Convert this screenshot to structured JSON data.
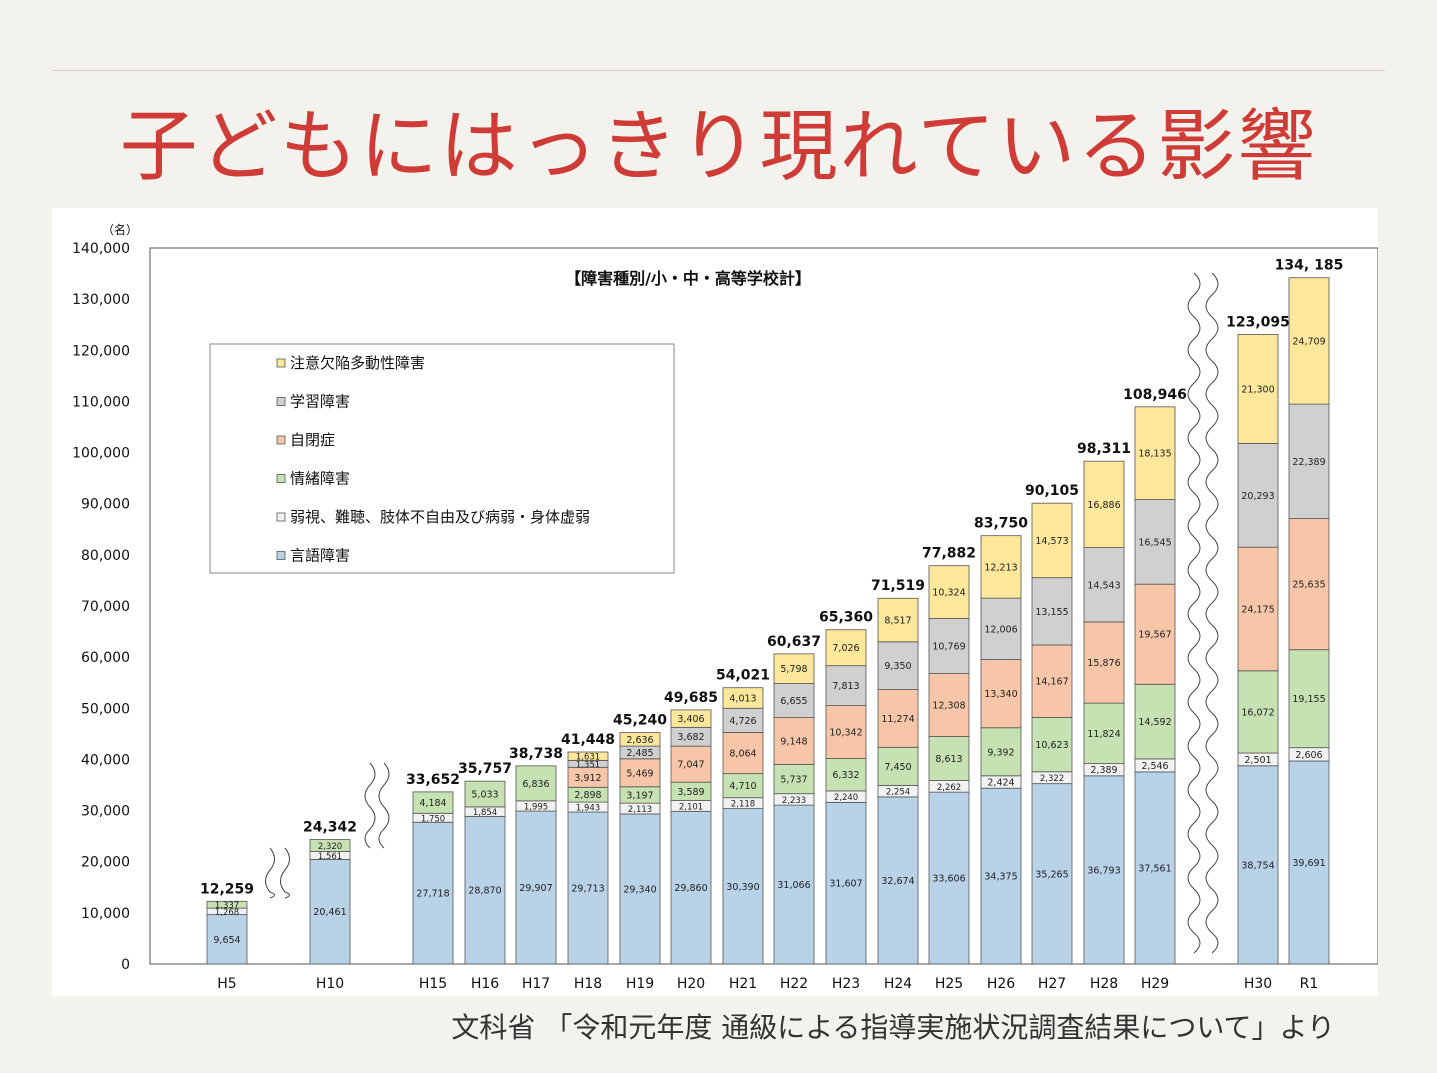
{
  "page": {
    "title": "子どもにはっきり現れている影響",
    "source": "文科省 「令和元年度 通級による指導実施状況調査結果について」より"
  },
  "chart_data": {
    "type": "bar",
    "stacked": true,
    "title": "【障害種別/小・中・高等学校計】",
    "ylabel": "（名）",
    "xlabel": "",
    "ylim": [
      0,
      140000
    ],
    "yticks": [
      "0",
      "10,000",
      "20,000",
      "30,000",
      "40,000",
      "50,000",
      "60,000",
      "70,000",
      "80,000",
      "90,000",
      "100,000",
      "110,000",
      "120,000",
      "130,000",
      "140,000"
    ],
    "grid": false,
    "legend_position": "top-left",
    "axis_breaks": [
      "H5-H10",
      "H10-H15",
      "H29-H30"
    ],
    "categories": [
      "H5",
      "H10",
      "H15",
      "H16",
      "H17",
      "H18",
      "H19",
      "H20",
      "H21",
      "H22",
      "H23",
      "H24",
      "H25",
      "H26",
      "H27",
      "H28",
      "H29",
      "H30",
      "R1"
    ],
    "totals": [
      "12,259",
      "24,342",
      "33,652",
      "35,757",
      "38,738",
      "41,448",
      "45,240",
      "49,685",
      "54,021",
      "60,637",
      "65,360",
      "71,519",
      "77,882",
      "83,750",
      "90,105",
      "98,311",
      "108,946",
      "123,095",
      "134, 185"
    ],
    "series": [
      {
        "name": "言語障害",
        "color": "#b8d2e8",
        "values": [
          9654,
          20461,
          27718,
          28870,
          29907,
          29713,
          29340,
          29860,
          30390,
          31066,
          31607,
          32674,
          33606,
          34375,
          35265,
          36793,
          37561,
          38754,
          39691
        ],
        "labels": [
          "9,654",
          "20,461",
          "27,718",
          "28,870",
          "29,907",
          "29,713",
          "29,340",
          "29,860",
          "30,390",
          "31,066",
          "31,607",
          "32,674",
          "33,606",
          "34,375",
          "35,265",
          "36,793",
          "37,561",
          "38,754",
          "39,691"
        ]
      },
      {
        "name": "弱視、難聴、肢体不自由及び病弱・身体虚弱",
        "color": "#f2f2f2",
        "values": [
          1268,
          1561,
          1750,
          1854,
          1995,
          1943,
          2113,
          2101,
          2118,
          2233,
          2240,
          2254,
          2262,
          2424,
          2322,
          2389,
          2546,
          2501,
          2606
        ],
        "labels": [
          "1,268",
          "1,561",
          "1,750",
          "1,854",
          "1,995",
          "1,943",
          "2,113",
          "2,101",
          "2,118",
          "2,233",
          "2,240",
          "2,254",
          "2,262",
          "2,424",
          "2,322",
          "2,389",
          "2,546",
          "2,501",
          "2,606"
        ]
      },
      {
        "name": "情緒障害",
        "color": "#c6e2b3",
        "values": [
          1337,
          2320,
          4184,
          5033,
          6836,
          2898,
          3197,
          3589,
          4710,
          5737,
          6332,
          7450,
          8613,
          9392,
          10623,
          11824,
          14592,
          16072,
          19155
        ],
        "labels": [
          "1,337",
          "2,320",
          "4,184",
          "5,033",
          "6,836",
          "2,898",
          "3,197",
          "3,589",
          "4,710",
          "5,737",
          "6,332",
          "7,450",
          "8,613",
          "9,392",
          "10,623",
          "11,824",
          "14,592",
          "16,072",
          "19,155"
        ]
      },
      {
        "name": "自閉症",
        "color": "#f7c6a8",
        "values": [
          null,
          null,
          null,
          null,
          null,
          3912,
          5469,
          7047,
          8064,
          9148,
          10342,
          11274,
          12308,
          13340,
          14167,
          15876,
          19567,
          24175,
          25635
        ],
        "labels": [
          "",
          "",
          "",
          "",
          "",
          "3,912",
          "5,469",
          "7,047",
          "8,064",
          "9,148",
          "10,342",
          "11,274",
          "12,308",
          "13,340",
          "14,167",
          "15,876",
          "19,567",
          "24,175",
          "25,635"
        ]
      },
      {
        "name": "学習障害",
        "color": "#d0d0d0",
        "values": [
          null,
          null,
          null,
          null,
          null,
          1351,
          2485,
          3682,
          4726,
          6655,
          7813,
          9350,
          10769,
          12006,
          13155,
          14543,
          16545,
          20293,
          22389
        ],
        "labels": [
          "",
          "",
          "",
          "",
          "",
          "1,351",
          "2,485",
          "3,682",
          "4,726",
          "6,655",
          "7,813",
          "9,350",
          "10,769",
          "12,006",
          "13,155",
          "14,543",
          "16,545",
          "20,293",
          "22,389"
        ]
      },
      {
        "name": "注意欠陥多動性障害",
        "color": "#fde79a",
        "values": [
          null,
          null,
          null,
          null,
          null,
          1631,
          2636,
          3406,
          4013,
          5798,
          7026,
          8517,
          10324,
          12213,
          14573,
          16886,
          18135,
          21300,
          24709
        ],
        "labels": [
          "",
          "",
          "",
          "",
          "",
          "1,631",
          "2,636",
          "3,406",
          "4,013",
          "5,798",
          "7,026",
          "8,517",
          "10,324",
          "12,213",
          "14,573",
          "16,886",
          "18,135",
          "21,300",
          "24,709"
        ]
      }
    ]
  }
}
